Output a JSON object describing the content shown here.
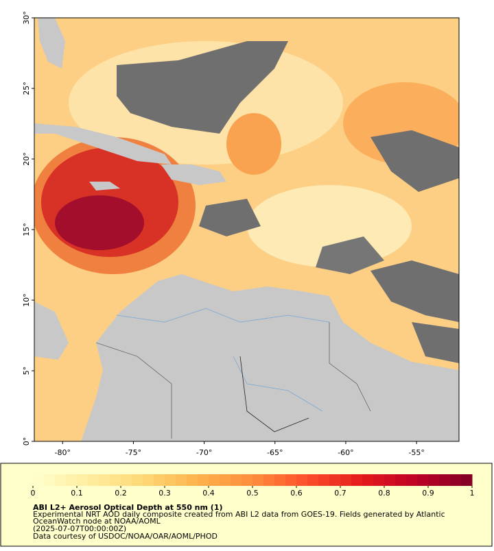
{
  "chart_data": {
    "type": "map",
    "xlim": [
      -82,
      -52
    ],
    "ylim": [
      0,
      30
    ],
    "xticks": [
      {
        "value": -80,
        "label": "-80°"
      },
      {
        "value": -75,
        "label": "-75°"
      },
      {
        "value": -70,
        "label": "-70°"
      },
      {
        "value": -65,
        "label": "-65°"
      },
      {
        "value": -60,
        "label": "-60°"
      },
      {
        "value": -55,
        "label": "-55°"
      }
    ],
    "yticks": [
      {
        "value": 0,
        "label": "0°"
      },
      {
        "value": 5,
        "label": "5°"
      },
      {
        "value": 10,
        "label": "10°"
      },
      {
        "value": 15,
        "label": "15°"
      },
      {
        "value": 20,
        "label": "20°"
      },
      {
        "value": 25,
        "label": "25°"
      },
      {
        "value": 30,
        "label": "30°"
      }
    ],
    "colorbar": {
      "lim": [
        0,
        1
      ],
      "ticks": [
        0,
        0.1,
        0.2,
        0.3,
        0.4,
        0.5,
        0.6,
        0.7,
        0.8,
        0.9,
        1
      ],
      "colors": [
        "#ffffcc",
        "#ffeda0",
        "#fed976",
        "#feb24c",
        "#fd8d3c",
        "#fc4e2a",
        "#e31a1c",
        "#bd0026",
        "#800026"
      ]
    },
    "title": "ABI L2+ Aerosol Optical Depth at 550 nm (1)",
    "description": [
      "Experimental NRT AOD daily composite created from ABI L2 data from GOES-19. Fields generated by Atlantic",
      "OceanWatch node at NOAA/AOML"
    ],
    "time": "(2025-07-07T00:00:00Z)",
    "credit": "Data courtesy of USDOC/NOAA/OAR/AOML/PHOD"
  }
}
